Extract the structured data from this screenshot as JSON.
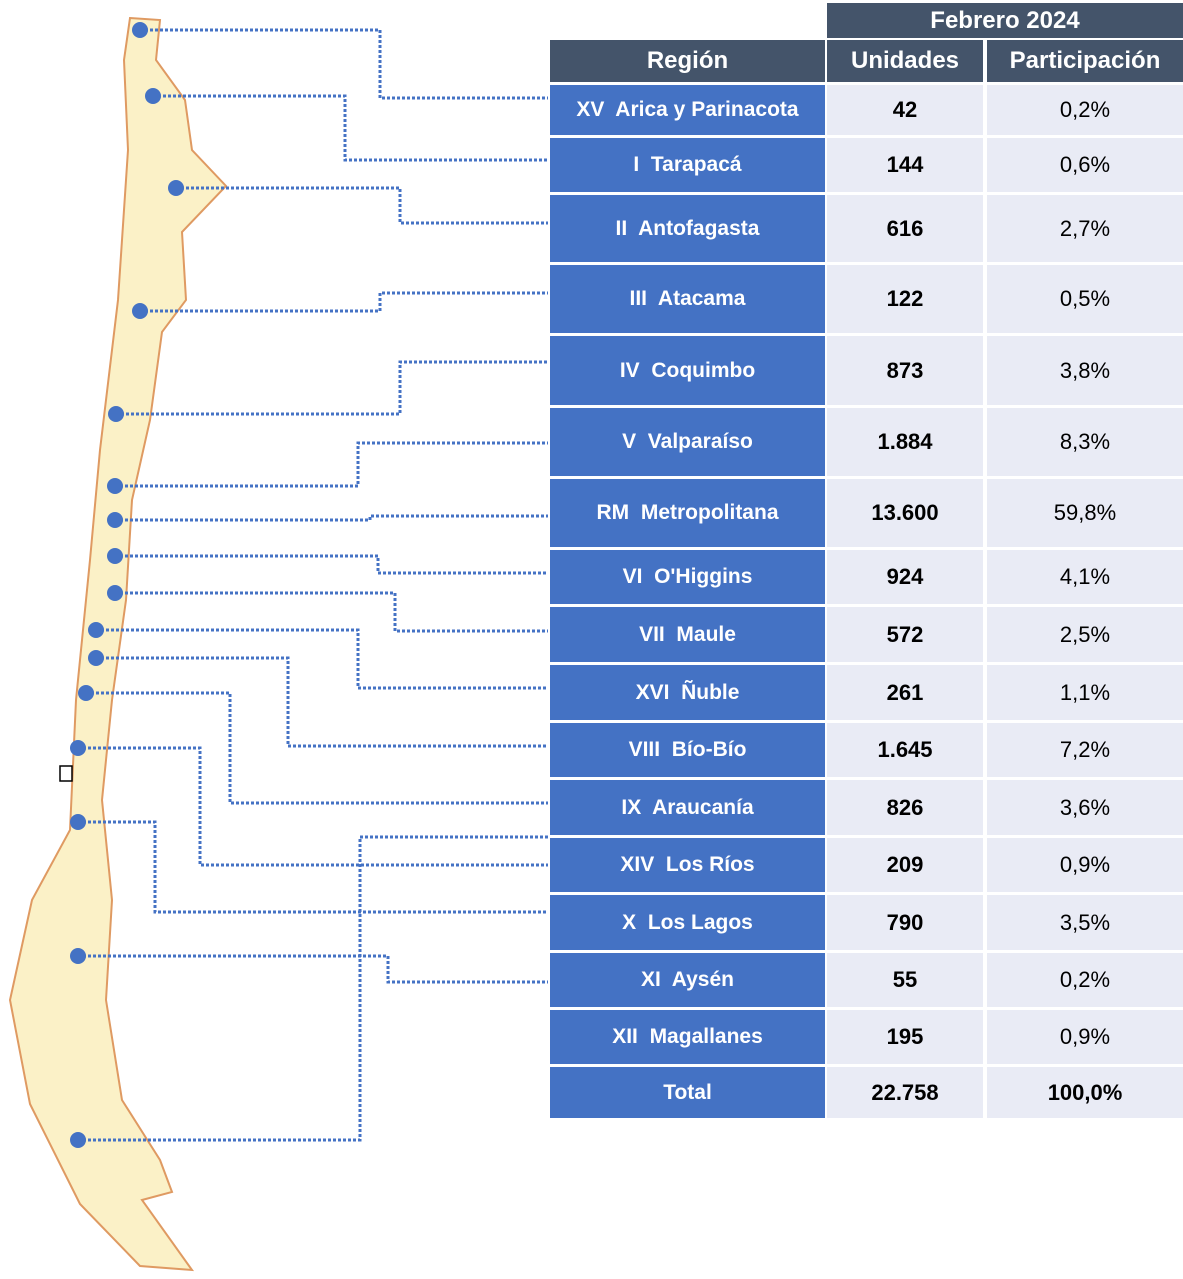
{
  "table": {
    "period": "Febrero 2024",
    "columns": [
      "Región",
      "Unidades",
      "Participación"
    ],
    "rows": [
      [
        "XV  Arica y Parinacota",
        "42",
        "0,2%"
      ],
      [
        "I  Tarapacá",
        "144",
        "0,6%"
      ],
      [
        "II  Antofagasta",
        "616",
        "2,7%"
      ],
      [
        "III  Atacama",
        "122",
        "0,5%"
      ],
      [
        "IV  Coquimbo",
        "873",
        "3,8%"
      ],
      [
        "V  Valparaíso",
        "1.884",
        "8,3%"
      ],
      [
        "RM  Metropolitana",
        "13.600",
        "59,8%"
      ],
      [
        "VI  O'Higgins",
        "924",
        "4,1%"
      ],
      [
        "VII  Maule",
        "572",
        "2,5%"
      ],
      [
        "XVI  Ñuble",
        "261",
        "1,1%"
      ],
      [
        "VIII  Bío-Bío",
        "1.645",
        "7,2%"
      ],
      [
        "IX  Araucanía",
        "826",
        "3,6%"
      ],
      [
        "XIV  Los Ríos",
        "209",
        "0,9%"
      ],
      [
        "X  Los Lagos",
        "790",
        "3,5%"
      ],
      [
        "XI  Aysén",
        "55",
        "0,2%"
      ],
      [
        "XII  Magallanes",
        "195",
        "0,9%"
      ]
    ],
    "total": [
      "Total",
      "22.758",
      "100,0%"
    ]
  }
}
